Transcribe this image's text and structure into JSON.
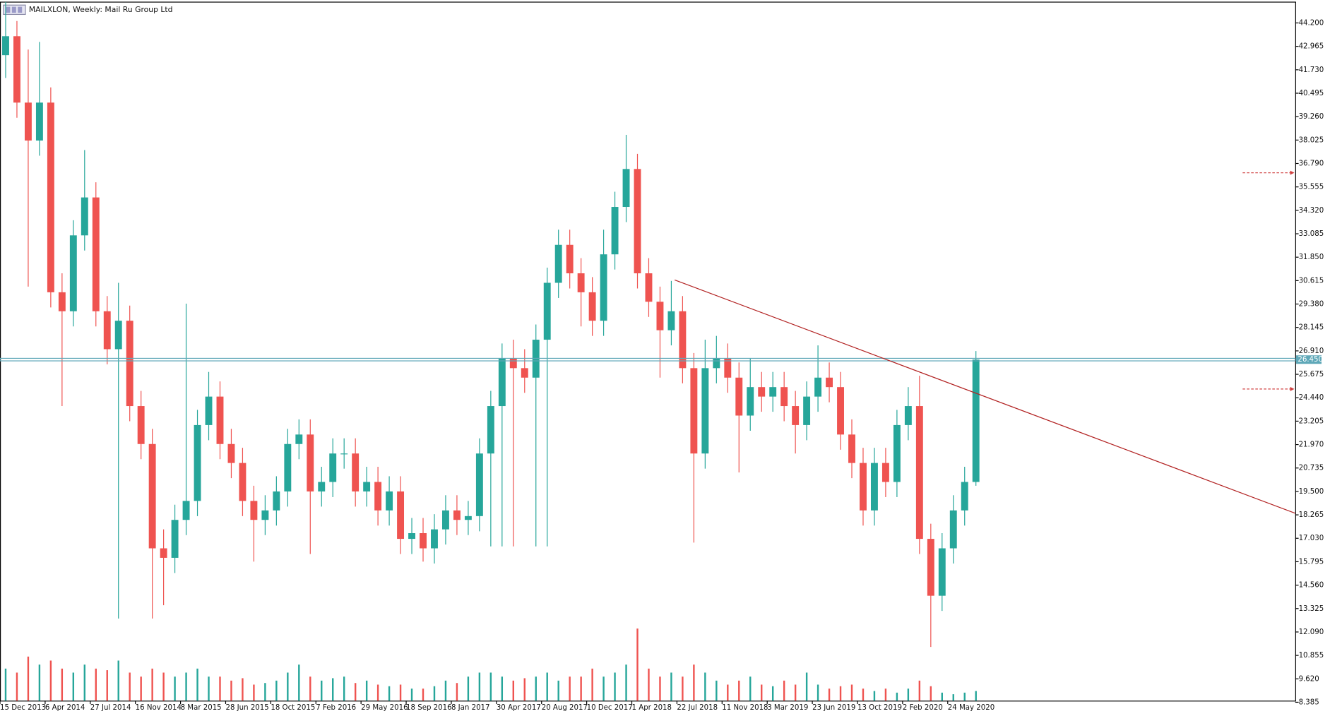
{
  "chart_data": {
    "type": "candlestick",
    "title": "MAILXLON, Weekly:  Mail Ru Group Ltd",
    "categories": [
      "15 Dec 2013",
      null,
      null,
      null,
      "6 Apr 2014",
      null,
      null,
      null,
      "27 Jul 2014",
      null,
      null,
      null,
      "16 Nov 2014",
      null,
      null,
      null,
      "8 Mar 2015",
      null,
      null,
      null,
      "28 Jun 2015",
      null,
      null,
      null,
      "18 Oct 2015",
      null,
      null,
      null,
      "7 Feb 2016",
      null,
      null,
      null,
      "29 May 2016",
      null,
      null,
      null,
      "18 Sep 2016",
      null,
      null,
      null,
      "8 Jan 2017",
      null,
      null,
      null,
      "30 Apr 2017",
      null,
      null,
      null,
      "20 Aug 2017",
      null,
      null,
      null,
      "10 Dec 2017",
      null,
      null,
      null,
      "1 Apr 2018",
      null,
      null,
      null,
      "22 Jul 2018",
      null,
      null,
      null,
      "11 Nov 2018",
      null,
      null,
      null,
      "3 Mar 2019",
      null,
      null,
      null,
      "23 Jun 2019",
      null,
      null,
      null,
      "13 Oct 2019",
      null,
      null,
      null,
      "2 Feb 2020",
      null,
      null,
      null,
      "24 May 2020",
      null,
      null
    ],
    "open": [
      42.5,
      43.5,
      40,
      38,
      40,
      30,
      29,
      33,
      35,
      29,
      27,
      28.5,
      24,
      22,
      16.5,
      16,
      18,
      19,
      23,
      24.5,
      22,
      21,
      19,
      18,
      18.5,
      19.5,
      22,
      22.5,
      19.5,
      20,
      21.5,
      21.5,
      19.5,
      20,
      18.5,
      19.5,
      17,
      17.3,
      16.5,
      17.5,
      18.5,
      18,
      18.2,
      21.5,
      24,
      26.5,
      26,
      25.5,
      27.5,
      30.5,
      32.5,
      31,
      30,
      28.5,
      32,
      34.5,
      36.5,
      31,
      29.5,
      28,
      29,
      26,
      21.5,
      26,
      26.5,
      25.5,
      23.5,
      25,
      24.5,
      25,
      24,
      23,
      24.5,
      25.5,
      25,
      22.5,
      21,
      18.5,
      21,
      20,
      23,
      24,
      17,
      14,
      16.5,
      18.5,
      20
    ],
    "high": [
      45.3,
      44.3,
      42.8,
      43.2,
      40.8,
      31,
      33.8,
      37.5,
      35.8,
      29.8,
      30.5,
      29.3,
      24.8,
      22.8,
      17.5,
      18.8,
      29.4,
      23.8,
      25.8,
      25.3,
      22.8,
      21.8,
      19.8,
      19.3,
      20.3,
      22.8,
      23.3,
      23.3,
      20.8,
      22.3,
      22.3,
      22.3,
      20.8,
      20.8,
      20.3,
      20.3,
      18.1,
      18.1,
      18.3,
      19.3,
      19.3,
      19,
      22.3,
      24.8,
      27.3,
      27.5,
      27,
      28.3,
      31.3,
      33.3,
      33.3,
      31.8,
      30.8,
      33.3,
      35.3,
      38.3,
      37.3,
      31.8,
      30.3,
      30.6,
      29.8,
      26.8,
      27.5,
      27.7,
      27.3,
      26.3,
      26.5,
      25.8,
      25.8,
      25.8,
      24.8,
      25.3,
      27.2,
      26.3,
      25.8,
      23.3,
      21.8,
      21.8,
      21.8,
      23.8,
      25,
      25.6,
      17.8,
      17.3,
      19.3,
      20.8,
      26.9
    ],
    "low": [
      41.3,
      39.2,
      30.3,
      37.2,
      29.2,
      24,
      28.2,
      32.2,
      28.2,
      26.2,
      12.8,
      23.2,
      21.2,
      12.8,
      13.5,
      15.2,
      17.2,
      18.2,
      22.2,
      21.2,
      20.2,
      18.2,
      15.8,
      17.2,
      17.7,
      18.7,
      21.2,
      16.2,
      18.7,
      19.2,
      20.7,
      18.7,
      18.7,
      17.7,
      17.7,
      16.2,
      16.2,
      15.8,
      15.7,
      16.7,
      17.2,
      17.2,
      17.4,
      16.6,
      16.6,
      16.6,
      24.7,
      16.6,
      16.6,
      29.7,
      30.2,
      28.2,
      27.7,
      27.7,
      31.2,
      33.7,
      30.2,
      28.7,
      25.5,
      27.2,
      25.2,
      16.8,
      20.7,
      25.2,
      24.7,
      20.5,
      22.7,
      23.7,
      23.7,
      23.2,
      21.5,
      22.2,
      23.7,
      24.2,
      21.7,
      20.2,
      17.7,
      17.7,
      19.2,
      19.2,
      22.2,
      16.2,
      11.3,
      13.2,
      15.7,
      17.7,
      19.8
    ],
    "close": [
      43.5,
      40,
      38,
      40,
      30,
      29,
      33,
      35,
      29,
      27,
      28.5,
      24,
      22,
      16.5,
      16,
      18,
      19,
      23,
      24.5,
      22,
      21,
      19,
      18,
      18.5,
      19.5,
      22,
      22.5,
      19.5,
      20,
      21.5,
      21.5,
      19.5,
      20,
      18.5,
      19.5,
      17,
      17.3,
      16.5,
      17.5,
      18.5,
      18,
      18.2,
      21.5,
      24,
      26.5,
      26,
      25.5,
      27.5,
      30.5,
      32.5,
      31,
      30,
      28.5,
      32,
      34.5,
      36.5,
      31,
      29.5,
      28,
      29,
      26,
      21.5,
      26,
      26.5,
      25.5,
      23.5,
      25,
      24.5,
      25,
      24,
      23,
      24.5,
      25.5,
      25,
      22.5,
      21,
      18.5,
      21,
      20,
      23,
      24,
      17,
      14,
      16.5,
      18.5,
      20,
      26.45
    ],
    "volume": [
      40,
      35,
      55,
      45,
      50,
      40,
      35,
      45,
      40,
      38,
      50,
      35,
      30,
      40,
      35,
      30,
      35,
      40,
      30,
      30,
      25,
      28,
      20,
      22,
      25,
      35,
      45,
      30,
      25,
      28,
      30,
      22,
      25,
      20,
      18,
      20,
      15,
      15,
      18,
      25,
      22,
      30,
      35,
      35,
      30,
      25,
      28,
      30,
      35,
      25,
      30,
      30,
      40,
      30,
      35,
      45,
      90,
      40,
      30,
      35,
      30,
      45,
      35,
      25,
      20,
      25,
      30,
      20,
      18,
      25,
      20,
      35,
      20,
      15,
      18,
      20,
      15,
      12,
      15,
      10,
      15,
      25,
      18,
      10,
      8,
      10,
      12
    ],
    "colors": {
      "up": "#26a69a",
      "down": "#ef5350",
      "trendline": "#b22222",
      "current": "#5fa8b8"
    },
    "xlim": [
      -0.5,
      114.3
    ],
    "ylim": [
      8.47,
      45.32
    ],
    "yticks": [
      {
        "value": 8.385,
        "label": "8.385"
      },
      {
        "value": 9.62,
        "label": "9.620"
      },
      {
        "value": 10.855,
        "label": "10.855"
      },
      {
        "value": 12.09,
        "label": "12.090"
      },
      {
        "value": 13.325,
        "label": "13.325"
      },
      {
        "value": 14.56,
        "label": "14.560"
      },
      {
        "value": 15.795,
        "label": "15.795"
      },
      {
        "value": 17.03,
        "label": "17.030"
      },
      {
        "value": 18.265,
        "label": "18.265"
      },
      {
        "value": 19.5,
        "label": "19.500"
      },
      {
        "value": 20.735,
        "label": "20.735"
      },
      {
        "value": 21.97,
        "label": "21.970"
      },
      {
        "value": 23.205,
        "label": "23.205"
      },
      {
        "value": 24.44,
        "label": "24.440"
      },
      {
        "value": 25.675,
        "label": "25.675"
      },
      {
        "value": 26.91,
        "label": "26.910"
      },
      {
        "value": 28.145,
        "label": "28.145"
      },
      {
        "value": 29.38,
        "label": "29.380"
      },
      {
        "value": 30.615,
        "label": "30.615"
      },
      {
        "value": 31.85,
        "label": "31.850"
      },
      {
        "value": 33.085,
        "label": "33.085"
      },
      {
        "value": 34.32,
        "label": "34.320"
      },
      {
        "value": 35.555,
        "label": "35.555"
      },
      {
        "value": 36.79,
        "label": "36.790"
      },
      {
        "value": 38.025,
        "label": "38.025"
      },
      {
        "value": 39.26,
        "label": "39.260"
      },
      {
        "value": 40.495,
        "label": "40.495"
      },
      {
        "value": 41.73,
        "label": "41.730"
      },
      {
        "value": 42.965,
        "label": "42.965"
      },
      {
        "value": 44.2,
        "label": "44.200"
      }
    ],
    "current_price": {
      "value": 26.45,
      "label": "26.450"
    },
    "trendline": {
      "start": [
        59.3,
        30.65
      ],
      "end": [
        114.3,
        18.35
      ]
    },
    "alert_levels": [
      36.3,
      24.9
    ]
  }
}
